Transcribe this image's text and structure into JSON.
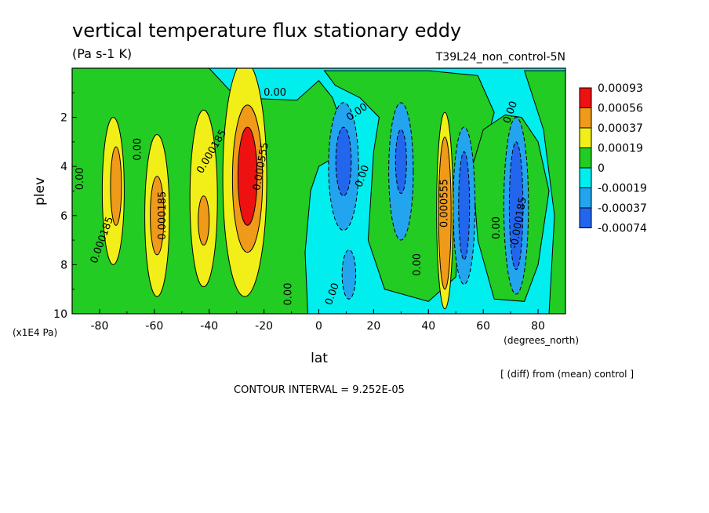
{
  "chart_data": {
    "type": "heatmap",
    "title": "vertical temperature flux stationary eddy",
    "units": "(Pa s-1 K)",
    "run_label": "T39L24_non_control-5N",
    "xlabel": "lat",
    "x_units": "(degrees_north)",
    "ylabel": "plev",
    "y_units": "(x1E4 Pa)",
    "xlim": [
      -90,
      90
    ],
    "ylim": [
      10,
      0
    ],
    "x_ticks": [
      -80,
      -60,
      -40,
      -20,
      0,
      20,
      40,
      60,
      80
    ],
    "x_tick_labels": [
      "-80",
      "-60",
      "-40",
      "-20",
      "0",
      "20",
      "40",
      "60",
      "80"
    ],
    "y_ticks": [
      2,
      4,
      6,
      8,
      10
    ],
    "y_tick_labels": [
      "2",
      "4",
      "6",
      "8",
      "10"
    ],
    "colorbar": {
      "levels": [
        "0.00093",
        "0.00056",
        "0.00037",
        "0.00019",
        "0",
        "-0.00019",
        "-0.00037",
        "-0.00074"
      ],
      "colors": [
        "#ee1111",
        "#f09a1a",
        "#f2ef18",
        "#22cc22",
        "#00eeee",
        "#22a5ee",
        "#2266ee"
      ]
    },
    "features": [
      {
        "lat": -75,
        "p": 5.0,
        "rx": 4,
        "ry": 3.0,
        "level": 2
      },
      {
        "lat": -74,
        "p": 4.8,
        "rx": 2,
        "ry": 1.6,
        "level": 1
      },
      {
        "lat": -59,
        "p": 6.0,
        "rx": 4.5,
        "ry": 3.3,
        "level": 2
      },
      {
        "lat": -59,
        "p": 6.0,
        "rx": 2.5,
        "ry": 1.6,
        "level": 1
      },
      {
        "lat": -42,
        "p": 5.3,
        "rx": 5,
        "ry": 3.6,
        "level": 2
      },
      {
        "lat": -42,
        "p": 6.2,
        "rx": 2,
        "ry": 1.0,
        "level": 1
      },
      {
        "lat": -27,
        "p": 4.5,
        "rx": 8,
        "ry": 4.8,
        "level": 2
      },
      {
        "lat": -26,
        "p": 4.5,
        "rx": 5.5,
        "ry": 3.0,
        "level": 1
      },
      {
        "lat": -26,
        "p": 4.4,
        "rx": 3.5,
        "ry": 2.0,
        "level": 0
      },
      {
        "lat": 46,
        "p": 5.8,
        "rx": 3,
        "ry": 4.0,
        "level": 2
      },
      {
        "lat": 46,
        "p": 5.9,
        "rx": 2.3,
        "ry": 3.1,
        "level": 1
      },
      {
        "lat": 9,
        "p": 4.0,
        "rx": 5.5,
        "ry": 2.6,
        "level": 5
      },
      {
        "lat": 9,
        "p": 3.8,
        "rx": 2.8,
        "ry": 1.4,
        "level": 6
      },
      {
        "lat": 11,
        "p": 8.4,
        "rx": 2.5,
        "ry": 1.0,
        "level": 5
      },
      {
        "lat": 30,
        "p": 4.2,
        "rx": 4.5,
        "ry": 2.8,
        "level": 5
      },
      {
        "lat": 30,
        "p": 3.8,
        "rx": 2.0,
        "ry": 1.3,
        "level": 6
      },
      {
        "lat": 53,
        "p": 5.6,
        "rx": 4,
        "ry": 3.2,
        "level": 5
      },
      {
        "lat": 53,
        "p": 5.6,
        "rx": 2,
        "ry": 2.2,
        "level": 6
      },
      {
        "lat": 72,
        "p": 5.6,
        "rx": 4.5,
        "ry": 3.6,
        "level": 5
      },
      {
        "lat": 72,
        "p": 5.6,
        "rx": 2.5,
        "ry": 2.6,
        "level": 6
      }
    ],
    "contour_labels": [
      {
        "text": "0.00",
        "lat": -16,
        "p": 1.0,
        "rotate": 0
      },
      {
        "text": "0.00",
        "lat": 14,
        "p": 1.8,
        "rotate": -35
      },
      {
        "text": "0.00",
        "lat": 70,
        "p": 1.8,
        "rotate": -70
      },
      {
        "text": "0.00",
        "lat": -87,
        "p": 4.5,
        "rotate": -90
      },
      {
        "text": "0.00",
        "lat": -66,
        "p": 3.3,
        "rotate": -90
      },
      {
        "text": "0.000185",
        "lat": -79,
        "p": 7.0,
        "rotate": -70
      },
      {
        "text": "0.000185",
        "lat": -39,
        "p": 3.4,
        "rotate": -60
      },
      {
        "text": "0.000185",
        "lat": -57,
        "p": 6.0,
        "rotate": -90
      },
      {
        "text": "0.000555",
        "lat": -21,
        "p": 4.0,
        "rotate": -80
      },
      {
        "text": "0.00",
        "lat": 16,
        "p": 4.4,
        "rotate": -70
      },
      {
        "text": "0.00",
        "lat": 36,
        "p": 8.0,
        "rotate": -90
      },
      {
        "text": "0.00",
        "lat": -11,
        "p": 9.2,
        "rotate": -90
      },
      {
        "text": "0.00",
        "lat": 5,
        "p": 9.2,
        "rotate": -70
      },
      {
        "text": "0.000555",
        "lat": 46,
        "p": 5.5,
        "rotate": -90
      },
      {
        "text": "0.00",
        "lat": 65,
        "p": 6.5,
        "rotate": -90
      },
      {
        "text": "-0.000185",
        "lat": 73,
        "p": 6.3,
        "rotate": -80
      }
    ],
    "annotation": "[ (diff) from (mean) control ]",
    "contour_interval": "CONTOUR INTERVAL = 9.252E-05"
  }
}
